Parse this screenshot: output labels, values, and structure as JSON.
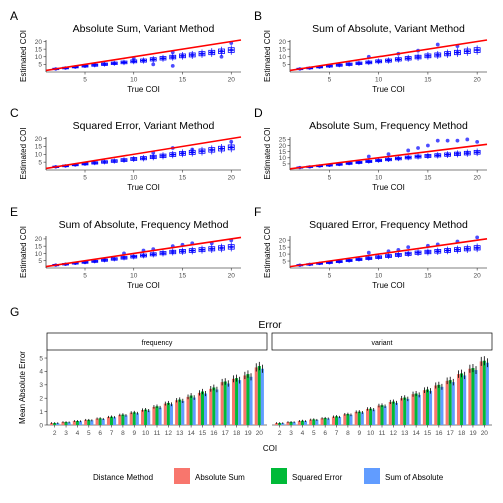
{
  "colors": {
    "points": "#0000ff",
    "fit_line": "#ff0000",
    "absolute_sum": "#f8766d",
    "squared_error": "#00ba38",
    "sum_of_absolute": "#619cff"
  },
  "chart_data": [
    {
      "type": "scatter",
      "letter": "A",
      "title": "Absolute Sum, Variant Method",
      "xlabel": "True COI",
      "ylabel": "Estimated COI",
      "xlim": [
        1,
        21
      ],
      "ylim": [
        0,
        21
      ],
      "xticks": [
        5,
        10,
        15,
        20
      ],
      "yticks": [
        5,
        10,
        15,
        20
      ],
      "line_of_equality": true,
      "grid": false,
      "x": [
        2,
        3,
        4,
        5,
        6,
        7,
        8,
        9,
        10,
        11,
        12,
        13,
        14,
        15,
        16,
        17,
        18,
        19,
        20
      ],
      "y": [
        2,
        2.6,
        3.3,
        3.9,
        4.5,
        5.1,
        5.7,
        6.3,
        7,
        7.5,
        8.3,
        9,
        9.8,
        10.6,
        11.2,
        12,
        12.8,
        13.6,
        14.4
      ],
      "outliers": [
        {
          "x": 12,
          "y": 5
        },
        {
          "x": 14,
          "y": 4
        },
        {
          "x": 10,
          "y": 9
        },
        {
          "x": 14,
          "y": 13
        },
        {
          "x": 19,
          "y": 10
        },
        {
          "x": 20,
          "y": 19
        }
      ]
    },
    {
      "type": "scatter",
      "letter": "B",
      "title": "Sum of Absolute, Variant Method",
      "xlabel": "True COI",
      "ylabel": "Estimated COI",
      "xlim": [
        1,
        21
      ],
      "ylim": [
        0,
        21
      ],
      "xticks": [
        5,
        10,
        15,
        20
      ],
      "yticks": [
        5,
        10,
        15,
        20
      ],
      "line_of_equality": true,
      "grid": false,
      "x": [
        2,
        3,
        4,
        5,
        6,
        7,
        8,
        9,
        10,
        11,
        12,
        13,
        14,
        15,
        16,
        17,
        18,
        19,
        20
      ],
      "y": [
        2,
        2.6,
        3.3,
        3.9,
        4.5,
        5.1,
        5.7,
        6.3,
        7,
        7.5,
        8.3,
        9,
        9.8,
        10.6,
        11.2,
        12,
        12.8,
        13.6,
        14.4
      ],
      "outliers": [
        {
          "x": 9,
          "y": 10
        },
        {
          "x": 12,
          "y": 12
        },
        {
          "x": 14,
          "y": 14
        },
        {
          "x": 16,
          "y": 18
        },
        {
          "x": 18,
          "y": 17
        }
      ]
    },
    {
      "type": "scatter",
      "letter": "C",
      "title": "Squared Error, Variant Method",
      "xlabel": "True COI",
      "ylabel": "Estimated COI",
      "xlim": [
        1,
        21
      ],
      "ylim": [
        0,
        21
      ],
      "xticks": [
        5,
        10,
        15,
        20
      ],
      "yticks": [
        5,
        10,
        15,
        20
      ],
      "line_of_equality": true,
      "grid": false,
      "x": [
        2,
        3,
        4,
        5,
        6,
        7,
        8,
        9,
        10,
        11,
        12,
        13,
        14,
        15,
        16,
        17,
        18,
        19,
        20
      ],
      "y": [
        2,
        2.6,
        3.3,
        3.9,
        4.5,
        5.1,
        5.7,
        6.3,
        7,
        7.5,
        8.3,
        9,
        9.8,
        10.6,
        11.2,
        12,
        12.8,
        13.6,
        14.4
      ],
      "outliers": [
        {
          "x": 12,
          "y": 11
        },
        {
          "x": 14,
          "y": 14
        },
        {
          "x": 16,
          "y": 13
        },
        {
          "x": 20,
          "y": 18
        }
      ]
    },
    {
      "type": "scatter",
      "letter": "D",
      "title": "Absolute Sum, Frequency Method",
      "xlabel": "True COI",
      "ylabel": "Estimated COI",
      "xlim": [
        1,
        21
      ],
      "ylim": [
        0,
        27
      ],
      "xticks": [
        5,
        10,
        15,
        20
      ],
      "yticks": [
        5,
        10,
        15,
        20,
        25
      ],
      "line_of_equality": true,
      "grid": false,
      "x": [
        2,
        3,
        4,
        5,
        6,
        7,
        8,
        9,
        10,
        11,
        12,
        13,
        14,
        15,
        16,
        17,
        18,
        19,
        20
      ],
      "y": [
        2,
        2.6,
        3.3,
        3.9,
        4.6,
        5.4,
        6.2,
        7,
        7.8,
        8.6,
        9.4,
        10.2,
        11,
        11.5,
        12,
        12.6,
        13.2,
        13.8,
        14.5
      ],
      "outliers": [
        {
          "x": 9,
          "y": 11
        },
        {
          "x": 11,
          "y": 13
        },
        {
          "x": 13,
          "y": 16
        },
        {
          "x": 14,
          "y": 18
        },
        {
          "x": 15,
          "y": 20
        },
        {
          "x": 16,
          "y": 24
        },
        {
          "x": 17,
          "y": 24
        },
        {
          "x": 18,
          "y": 24
        },
        {
          "x": 19,
          "y": 25
        },
        {
          "x": 20,
          "y": 23
        }
      ]
    },
    {
      "type": "scatter",
      "letter": "E",
      "title": "Sum of Absolute, Frequency Method",
      "xlabel": "True COI",
      "ylabel": "Estimated COI",
      "xlim": [
        1,
        21
      ],
      "ylim": [
        0,
        22
      ],
      "xticks": [
        5,
        10,
        15,
        20
      ],
      "yticks": [
        5,
        10,
        15,
        20
      ],
      "line_of_equality": true,
      "grid": false,
      "x": [
        2,
        3,
        4,
        5,
        6,
        7,
        8,
        9,
        10,
        11,
        12,
        13,
        14,
        15,
        16,
        17,
        18,
        19,
        20
      ],
      "y": [
        2,
        2.6,
        3.3,
        3.9,
        4.6,
        5.4,
        6.2,
        7,
        7.8,
        8.6,
        9.4,
        10.2,
        11,
        11.5,
        12,
        12.6,
        13.2,
        13.8,
        14.5
      ],
      "outliers": [
        {
          "x": 9,
          "y": 10
        },
        {
          "x": 11,
          "y": 12
        },
        {
          "x": 12,
          "y": 13
        },
        {
          "x": 14,
          "y": 15
        },
        {
          "x": 15,
          "y": 16
        },
        {
          "x": 16,
          "y": 17
        },
        {
          "x": 18,
          "y": 17
        },
        {
          "x": 20,
          "y": 19
        }
      ]
    },
    {
      "type": "scatter",
      "letter": "F",
      "title": "Squared Error, Frequency Method",
      "xlabel": "True COI",
      "ylabel": "Estimated COI",
      "xlim": [
        1,
        21
      ],
      "ylim": [
        0,
        23
      ],
      "xticks": [
        5,
        10,
        15,
        20
      ],
      "yticks": [
        5,
        10,
        15,
        20
      ],
      "line_of_equality": true,
      "grid": false,
      "x": [
        2,
        3,
        4,
        5,
        6,
        7,
        8,
        9,
        10,
        11,
        12,
        13,
        14,
        15,
        16,
        17,
        18,
        19,
        20
      ],
      "y": [
        2,
        2.6,
        3.3,
        3.9,
        4.6,
        5.4,
        6.2,
        7,
        7.8,
        8.6,
        9.4,
        10.2,
        11,
        11.5,
        12,
        12.6,
        13.2,
        13.8,
        14.5
      ],
      "outliers": [
        {
          "x": 9,
          "y": 11
        },
        {
          "x": 11,
          "y": 12
        },
        {
          "x": 12,
          "y": 13
        },
        {
          "x": 13,
          "y": 15
        },
        {
          "x": 15,
          "y": 16
        },
        {
          "x": 16,
          "y": 17
        },
        {
          "x": 18,
          "y": 19
        },
        {
          "x": 20,
          "y": 22
        }
      ]
    },
    {
      "type": "bar",
      "letter": "G",
      "title": "Error",
      "xlabel": "COI",
      "ylabel": "Mean Absolute Error",
      "ylim": [
        0,
        5.6
      ],
      "yticks": [
        0,
        1,
        2,
        3,
        4,
        5
      ],
      "categories": [
        "2",
        "3",
        "4",
        "5",
        "6",
        "7",
        "8",
        "9",
        "10",
        "11",
        "12",
        "13",
        "14",
        "15",
        "16",
        "17",
        "18",
        "19",
        "20"
      ],
      "facets": [
        {
          "label": "frequency",
          "series": [
            {
              "name": "Absolute Sum",
              "values": [
                0.15,
                0.22,
                0.3,
                0.38,
                0.48,
                0.6,
                0.75,
                0.92,
                1.12,
                1.35,
                1.6,
                1.85,
                2.1,
                2.4,
                2.7,
                3.2,
                3.45,
                3.7,
                4.3
              ]
            },
            {
              "name": "Squared Error",
              "values": [
                0.15,
                0.22,
                0.3,
                0.38,
                0.5,
                0.62,
                0.78,
                0.95,
                1.15,
                1.4,
                1.65,
                1.9,
                2.2,
                2.5,
                2.8,
                3.25,
                3.5,
                3.8,
                4.4
              ]
            },
            {
              "name": "Sum of Absolute",
              "values": [
                0.14,
                0.2,
                0.28,
                0.35,
                0.45,
                0.58,
                0.72,
                0.88,
                1.08,
                1.3,
                1.55,
                1.8,
                2.05,
                2.35,
                2.65,
                3.1,
                3.35,
                3.6,
                4.2
              ]
            }
          ]
        },
        {
          "label": "variant",
          "series": [
            {
              "name": "Absolute Sum",
              "values": [
                0.15,
                0.22,
                0.3,
                0.4,
                0.5,
                0.62,
                0.8,
                0.98,
                1.2,
                1.45,
                1.72,
                2.0,
                2.3,
                2.6,
                2.95,
                3.3,
                3.8,
                4.2,
                4.75
              ]
            },
            {
              "name": "Squared Error",
              "values": [
                0.15,
                0.23,
                0.32,
                0.42,
                0.52,
                0.65,
                0.82,
                1.0,
                1.22,
                1.48,
                1.75,
                2.05,
                2.35,
                2.65,
                3.0,
                3.35,
                3.85,
                4.25,
                4.8
              ]
            },
            {
              "name": "Sum of Absolute",
              "values": [
                0.14,
                0.21,
                0.29,
                0.38,
                0.48,
                0.6,
                0.76,
                0.94,
                1.15,
                1.4,
                1.65,
                1.95,
                2.25,
                2.55,
                2.85,
                3.2,
                3.7,
                4.1,
                4.65
              ]
            }
          ]
        }
      ],
      "legend": {
        "title": "Distance Method",
        "position": "bottom",
        "entries": [
          "Absolute Sum",
          "Squared Error",
          "Sum of Absolute"
        ]
      }
    }
  ]
}
